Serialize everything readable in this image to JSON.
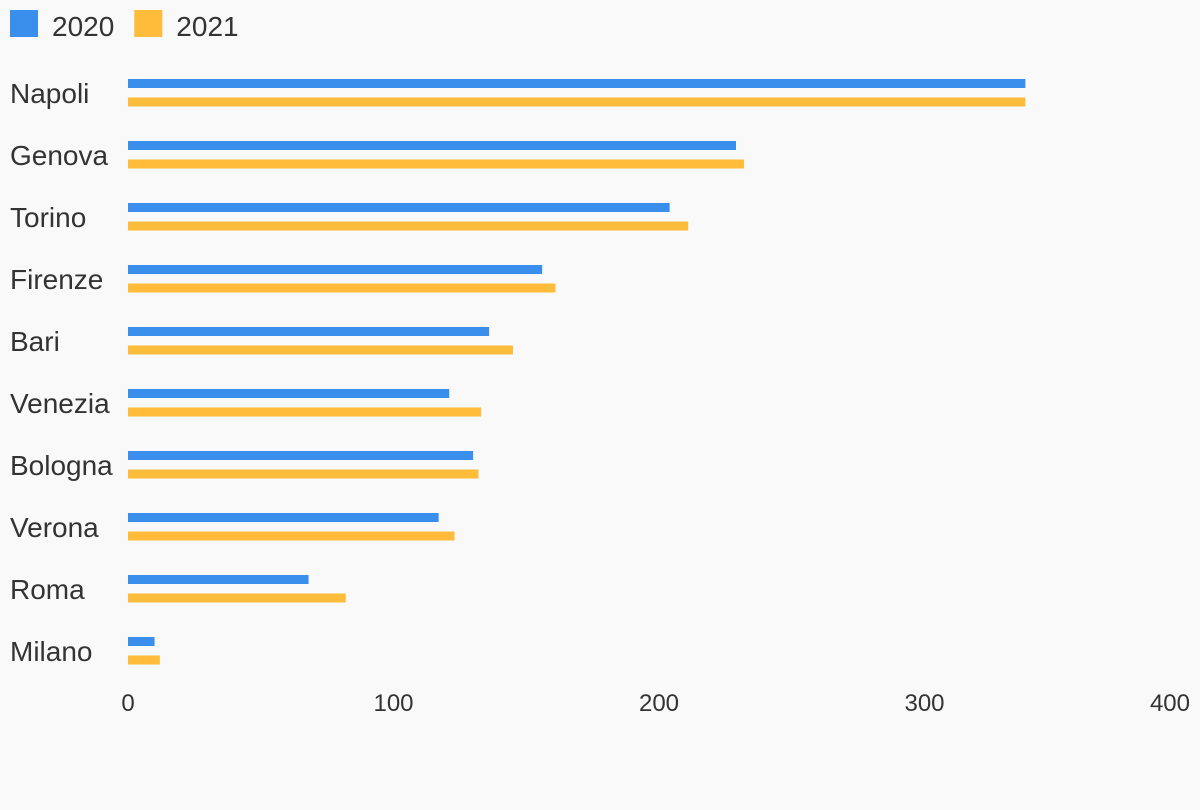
{
  "chart_data": {
    "type": "bar",
    "orientation": "horizontal",
    "categories": [
      "Napoli",
      "Genova",
      "Torino",
      "Firenze",
      "Bari",
      "Venezia",
      "Bologna",
      "Verona",
      "Roma",
      "Milano"
    ],
    "series": [
      {
        "name": "2020",
        "color": "#3a8eec",
        "values": [
          338,
          229,
          204,
          156,
          136,
          121,
          130,
          117,
          68,
          10
        ]
      },
      {
        "name": "2021",
        "color": "#ffbb3a",
        "values": [
          338,
          232,
          211,
          161,
          145,
          133,
          132,
          123,
          82,
          12
        ]
      }
    ],
    "xlim": [
      0,
      400
    ],
    "xticks": [
      0,
      100,
      200,
      300,
      400
    ],
    "legend_position": "top-left",
    "grid": false
  }
}
